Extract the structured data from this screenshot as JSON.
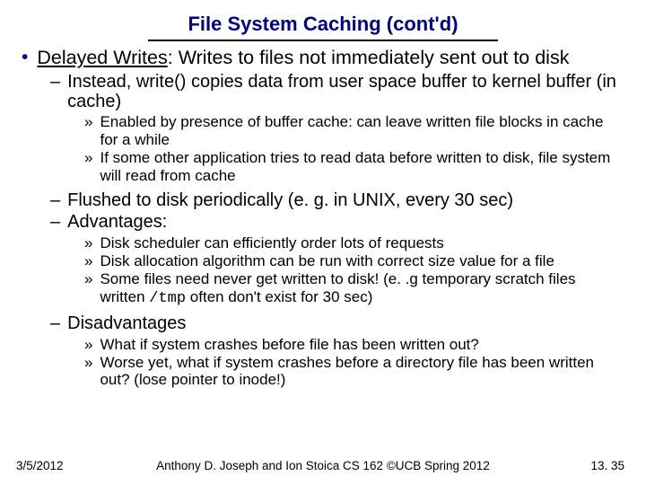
{
  "title": "File System Caching (cont'd)",
  "colors": {
    "title_color": "#000080",
    "bullet_dot_color": "#000080",
    "text_color": "#000000",
    "background": "#ffffff",
    "underline_color": "#000000"
  },
  "typography": {
    "title_fontsize": 22,
    "l1_fontsize": 21.5,
    "l2_fontsize": 20,
    "l3_fontsize": 17,
    "footer_fontsize": 13.5,
    "font_family": "Arial"
  },
  "b1": {
    "heading_underlined": "Delayed Writes",
    "heading_rest": ": Writes to files not immediately sent out to disk"
  },
  "b1_1": "Instead, write() copies data from user space buffer to kernel buffer (in cache)",
  "b1_1_1": "Enabled by presence of buffer cache: can leave written file blocks in cache for a while",
  "b1_1_2": "If some other application tries to read data before written to disk, file system will read from cache",
  "b1_2": "Flushed to disk periodically (e. g. in UNIX, every 30 sec)",
  "b1_3": "Advantages:",
  "b1_3_1": "Disk scheduler can efficiently order lots of requests",
  "b1_3_2": "Disk allocation algorithm can be run with correct size value for a file",
  "b1_3_3a": "Some files need never get written to disk! (e. .g temporary scratch files written ",
  "b1_3_3_code": "/tmp",
  "b1_3_3b": " often don't exist for 30 sec)",
  "b1_4": "Disadvantages",
  "b1_4_1": "What if system crashes before file has been written out?",
  "b1_4_2": "Worse yet, what if system crashes before a directory file has been written out? (lose pointer to inode!)",
  "footer": {
    "date": "3/5/2012",
    "center": "Anthony D. Joseph and Ion Stoica CS 162 ©UCB Spring 2012",
    "page": "13. 35"
  }
}
